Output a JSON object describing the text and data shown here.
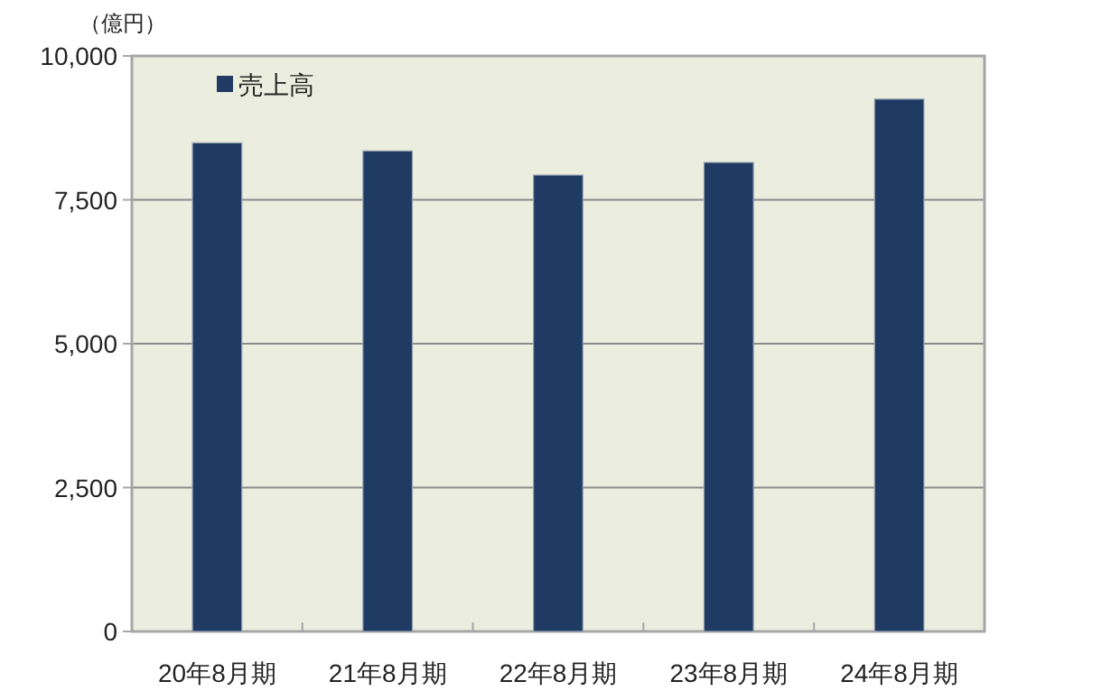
{
  "chart_data": {
    "type": "bar",
    "ylabel": "（億円）",
    "categories": [
      "20年8月期",
      "21年8月期",
      "22年8月期",
      "23年8月期",
      "24年8月期"
    ],
    "series": [
      {
        "name": "売上高",
        "color": "#1f3b63",
        "values": [
          8490,
          8350,
          7930,
          8150,
          9250
        ]
      }
    ],
    "ylim": [
      0,
      10000
    ],
    "yticks": [
      {
        "value": 0,
        "label": "0"
      },
      {
        "value": 2500,
        "label": "2,500"
      },
      {
        "value": 5000,
        "label": "5,000"
      },
      {
        "value": 7500,
        "label": "7,500"
      },
      {
        "value": 10000,
        "label": "10,000"
      }
    ],
    "grid": "y",
    "legend": "top left"
  }
}
